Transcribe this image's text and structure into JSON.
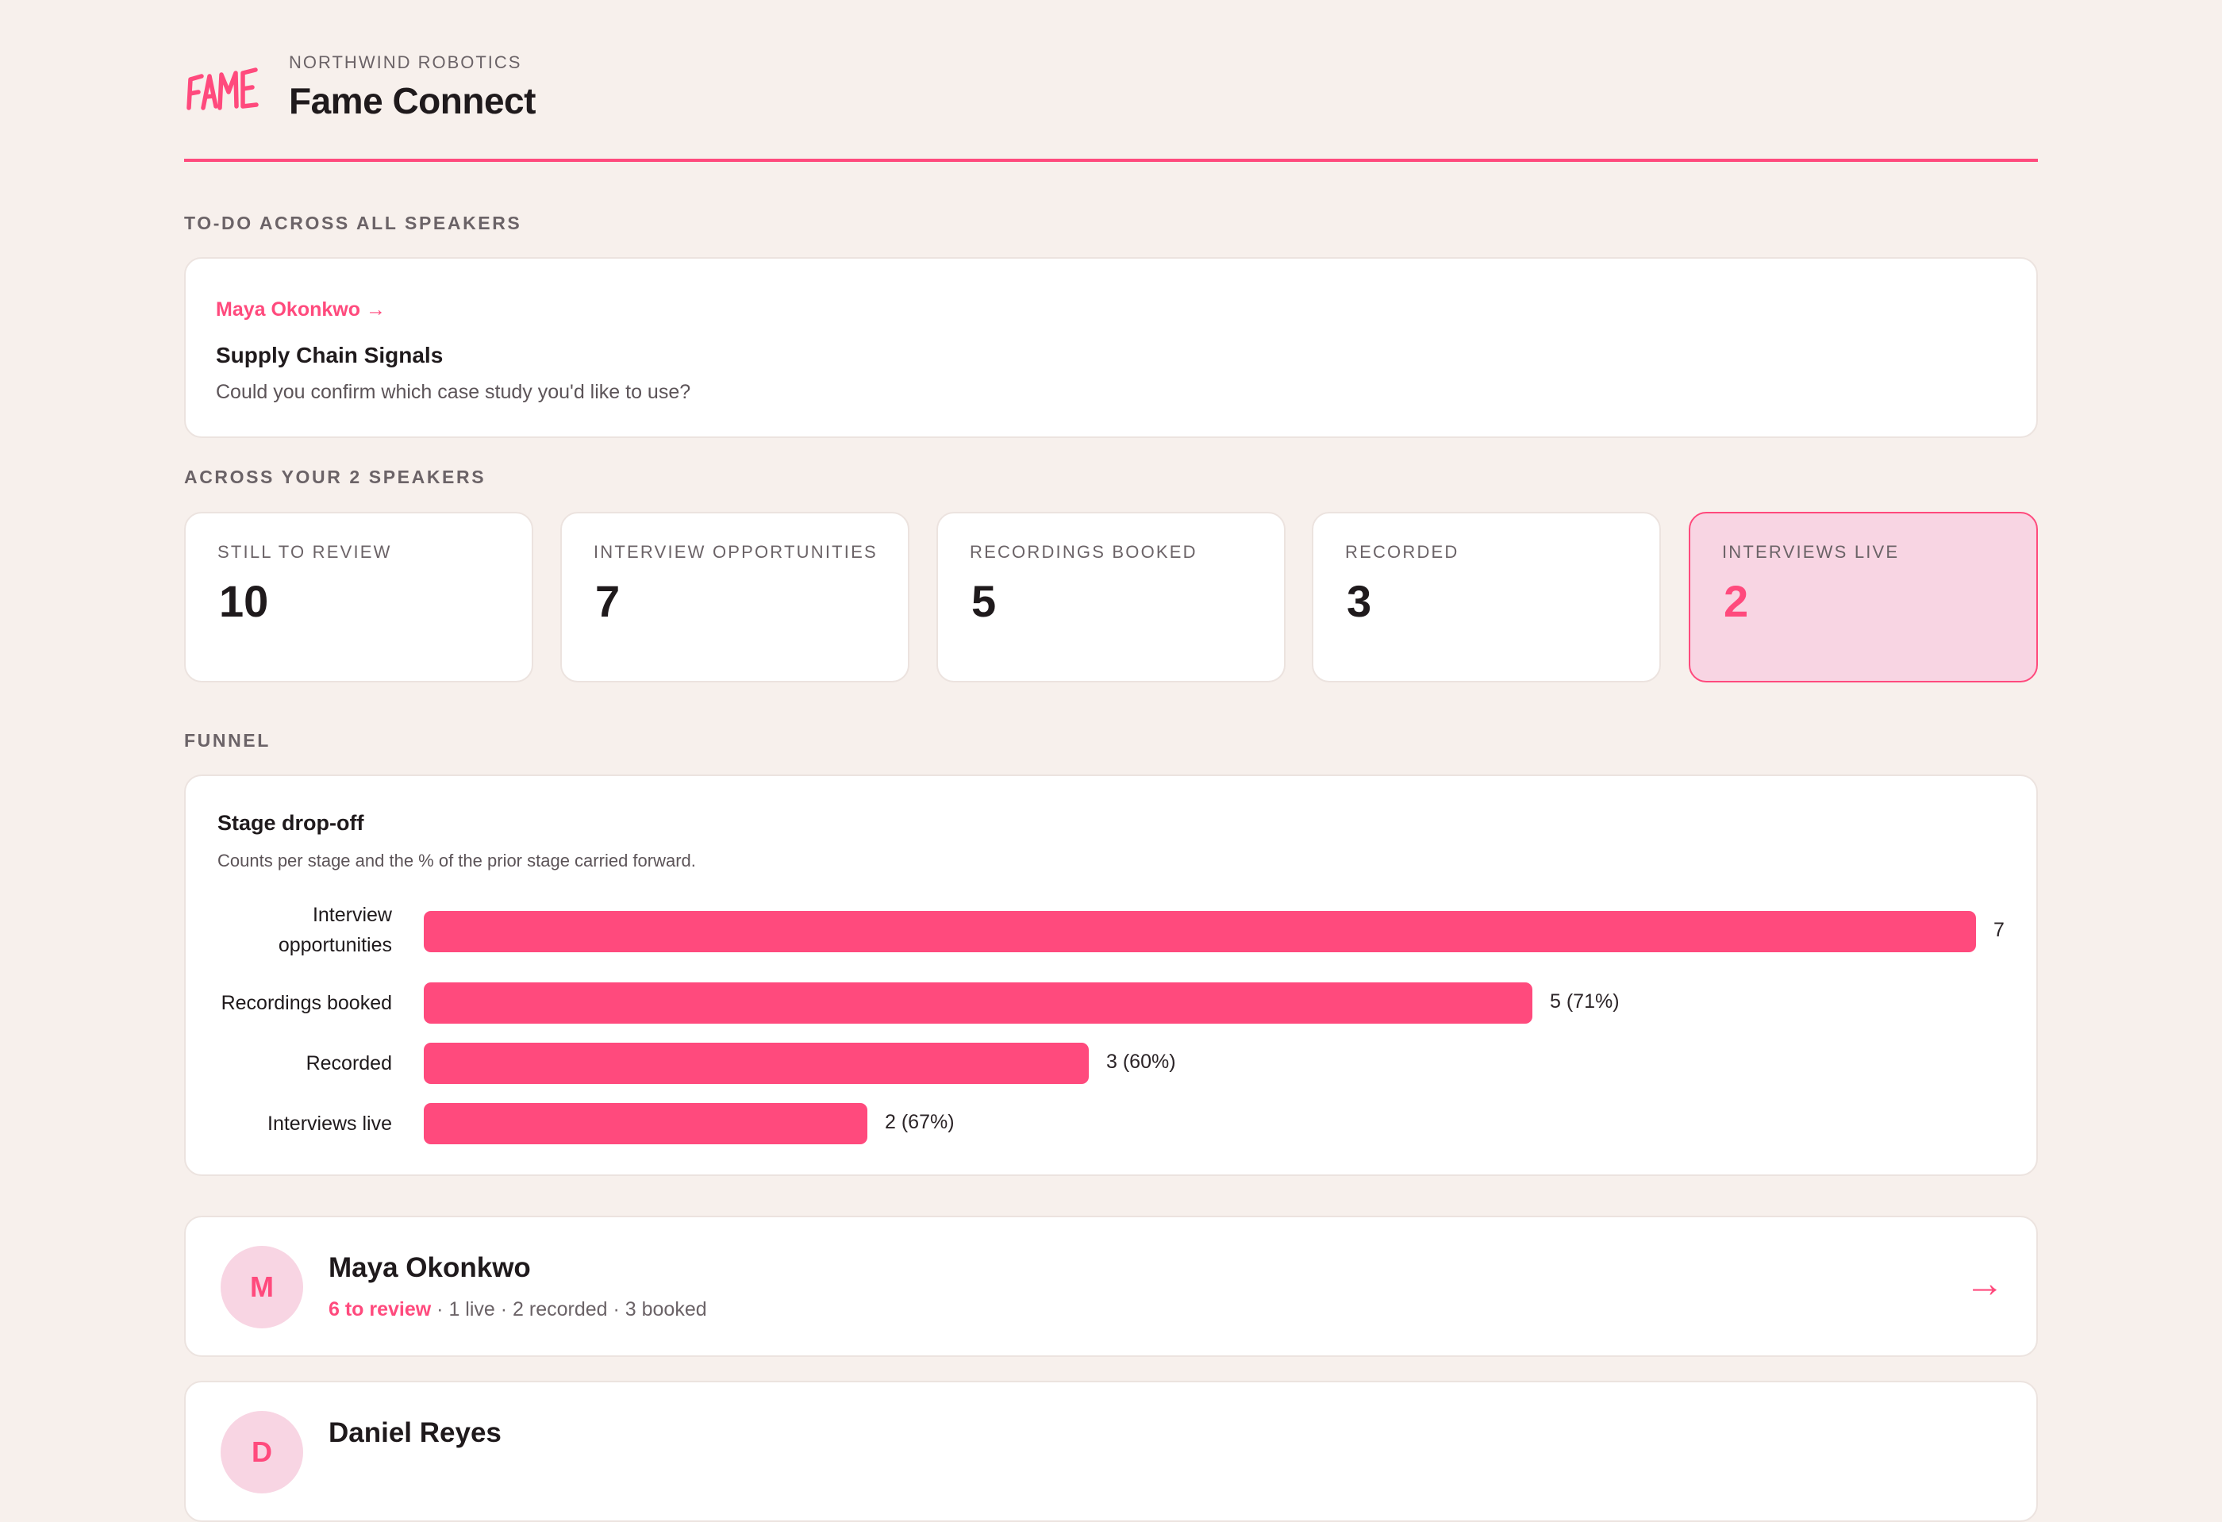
{
  "header": {
    "org": "NORTHWIND ROBOTICS",
    "title": "Fame Connect",
    "logo_text": "FAME",
    "accent": "#ff4a7d"
  },
  "todo": {
    "section_label": "TO-DO ACROSS ALL SPEAKERS",
    "speaker": "Maya Okonkwo →",
    "title": "Supply Chain Signals",
    "message": "Could you confirm which case study you'd like to use?"
  },
  "stats": {
    "section_label": "ACROSS YOUR 2 SPEAKERS",
    "items": [
      {
        "label": "STILL TO REVIEW",
        "value": "10"
      },
      {
        "label": "INTERVIEW OPPORTUNITIES",
        "value": "7"
      },
      {
        "label": "RECORDINGS BOOKED",
        "value": "5"
      },
      {
        "label": "RECORDED",
        "value": "3"
      },
      {
        "label": "INTERVIEWS LIVE",
        "value": "2"
      }
    ]
  },
  "funnel": {
    "section_label": "FUNNEL",
    "title": "Stage drop-off",
    "subtitle": "Counts per stage and the % of the prior stage carried forward."
  },
  "chart_data": {
    "type": "bar",
    "orientation": "horizontal",
    "categories": [
      "Interview opportunities",
      "Recordings booked",
      "Recorded",
      "Interviews live"
    ],
    "values": [
      7,
      5,
      3,
      2
    ],
    "data_labels": [
      "7",
      "5 (71%)",
      "3 (60%)",
      "2 (67%)"
    ],
    "xlim": [
      0,
      7
    ],
    "grid": false,
    "bar_color": "#ff4a7d"
  },
  "speakers": [
    {
      "initial": "M",
      "name": "Maya Okonkwo",
      "to_review": "6 to review",
      "rest": " · 1 live · 2 recorded · 3 booked",
      "arrow": "→"
    },
    {
      "initial": "D",
      "name": "Daniel Reyes"
    }
  ]
}
